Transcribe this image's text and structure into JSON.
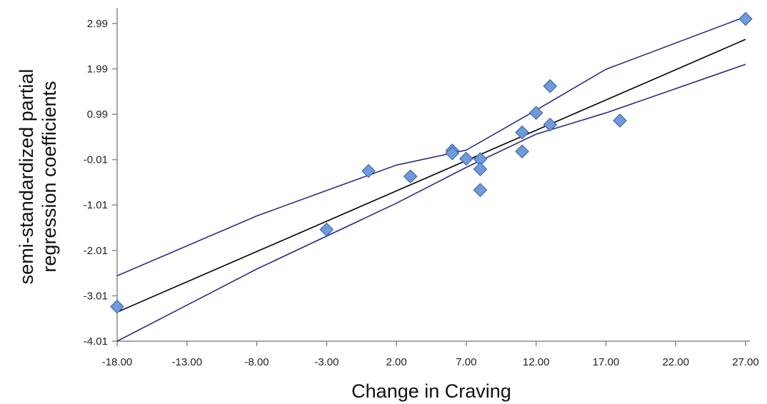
{
  "chart_data": {
    "type": "scatter",
    "title": "",
    "xlabel": "Change in Craving",
    "ylabel_lines": [
      "semi-standardized partial",
      "regression coefficients"
    ],
    "xlim": [
      -18,
      27
    ],
    "ylim": [
      -4.01,
      3.24
    ],
    "x_ticks": [
      -18,
      -13,
      -8,
      -3,
      2,
      7,
      12,
      17,
      22,
      27
    ],
    "x_tick_labels": [
      "-18.00",
      "-13.00",
      "-8.00",
      "-3.00",
      "2.00",
      "7.00",
      "12.00",
      "17.00",
      "22.00",
      "27.00"
    ],
    "y_ticks": [
      -4.01,
      -3.01,
      -2.01,
      -1.01,
      -0.01,
      0.99,
      1.99,
      2.99
    ],
    "y_tick_labels": [
      "-4.01",
      "-3.01",
      "-2.01",
      "-1.01",
      "-0.01",
      "0.99",
      "1.99",
      "2.99"
    ],
    "grid": false,
    "legend": "none",
    "points": [
      {
        "x": -18,
        "y": -3.25
      },
      {
        "x": -3,
        "y": -1.55
      },
      {
        "x": 0,
        "y": -0.26
      },
      {
        "x": 3,
        "y": -0.38
      },
      {
        "x": 6,
        "y": 0.19
      },
      {
        "x": 6,
        "y": 0.13
      },
      {
        "x": 7,
        "y": 0.01
      },
      {
        "x": 8,
        "y": 0.0
      },
      {
        "x": 8,
        "y": -0.22
      },
      {
        "x": 8,
        "y": -0.68
      },
      {
        "x": 11,
        "y": 0.59
      },
      {
        "x": 11,
        "y": 0.17
      },
      {
        "x": 12,
        "y": 1.02
      },
      {
        "x": 13,
        "y": 1.61
      },
      {
        "x": 13,
        "y": 0.76
      },
      {
        "x": 18,
        "y": 0.85
      },
      {
        "x": 27,
        "y": 3.09
      }
    ],
    "fit_line": {
      "x": [
        -18,
        27
      ],
      "y": [
        -3.37,
        2.64
      ]
    },
    "ci_upper": [
      {
        "x": -18,
        "y": -2.57
      },
      {
        "x": -8,
        "y": -1.25
      },
      {
        "x": 2,
        "y": -0.13
      },
      {
        "x": 7,
        "y": 0.2
      },
      {
        "x": 12,
        "y": 1.08
      },
      {
        "x": 17,
        "y": 1.98
      },
      {
        "x": 27,
        "y": 3.14
      }
    ],
    "ci_lower": [
      {
        "x": -18,
        "y": -4.01
      },
      {
        "x": -8,
        "y": -2.42
      },
      {
        "x": 2,
        "y": -0.97
      },
      {
        "x": 7,
        "y": -0.18
      },
      {
        "x": 12,
        "y": 0.55
      },
      {
        "x": 17,
        "y": 1.02
      },
      {
        "x": 27,
        "y": 2.09
      }
    ],
    "colors": {
      "marker_fill": "#6f9bdc",
      "marker_stroke": "#3e68a8",
      "fit_line": "#000000",
      "ci_lines": "#2b2b8c",
      "axis": "#8a8a8a"
    }
  }
}
